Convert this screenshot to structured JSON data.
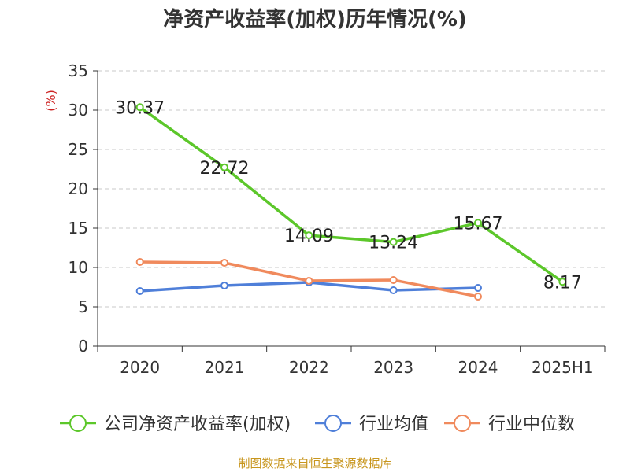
{
  "chart_data": {
    "type": "line",
    "title": "净资产收益率(加权)历年情况(%)",
    "ylabel": "(%)",
    "categories": [
      "2020",
      "2021",
      "2022",
      "2023",
      "2024",
      "2025H1"
    ],
    "ylim": [
      0,
      35
    ],
    "yticks": [
      0,
      5,
      10,
      15,
      20,
      25,
      30,
      35
    ],
    "grid": true,
    "legend_position": "bottom",
    "series": [
      {
        "name": "公司净资产收益率(加权)",
        "color": "#5cc72a",
        "values": [
          30.37,
          22.72,
          14.09,
          13.24,
          15.67,
          8.17
        ],
        "data_labels": [
          "30.37",
          "22.72",
          "14.09",
          "13.24",
          "15.67",
          "8.17"
        ]
      },
      {
        "name": "行业均值",
        "color": "#4f7fd9",
        "values": [
          7.0,
          7.7,
          8.1,
          7.1,
          7.4,
          null
        ]
      },
      {
        "name": "行业中位数",
        "color": "#f08a5d",
        "values": [
          10.7,
          10.6,
          8.3,
          8.4,
          6.3,
          null
        ]
      }
    ]
  },
  "source": "制图数据来自恒生聚源数据库"
}
